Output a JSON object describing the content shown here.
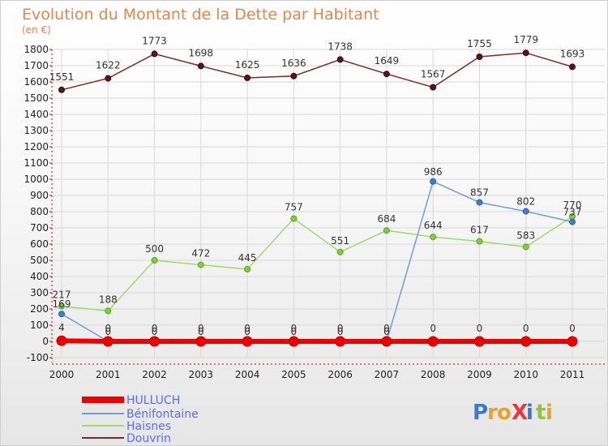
{
  "chart_data": {
    "type": "line",
    "title": "Evolution du Montant de la Dette par Habitant",
    "subtitle": "(en €)",
    "x": [
      "2000",
      "2001",
      "2002",
      "2003",
      "2004",
      "2005",
      "2006",
      "2007",
      "2008",
      "2009",
      "2010",
      "2011"
    ],
    "ylim": [
      -100,
      1800
    ],
    "yticks": [
      -100,
      0,
      100,
      200,
      300,
      400,
      500,
      600,
      700,
      800,
      900,
      1000,
      1100,
      1200,
      1300,
      1400,
      1500,
      1600,
      1700,
      1800
    ],
    "grid": true,
    "legend_position": "bottom-left",
    "series": [
      {
        "name": "HULLUCH",
        "color": "#ee0000",
        "values": [
          4,
          0,
          0,
          0,
          0,
          0,
          0,
          0,
          0,
          0,
          0,
          0
        ]
      },
      {
        "name": "Bénifontaine",
        "color": "#6fa0d8",
        "values": [
          169,
          0,
          0,
          0,
          0,
          0,
          0,
          0,
          986,
          857,
          802,
          737
        ]
      },
      {
        "name": "Haisnes",
        "color": "#9edc6a",
        "values": [
          217,
          188,
          500,
          472,
          445,
          757,
          551,
          684,
          644,
          617,
          583,
          770
        ]
      },
      {
        "name": "Douvrin",
        "color": "#7a2c2c",
        "values": [
          1551,
          1622,
          1773,
          1698,
          1625,
          1636,
          1738,
          1649,
          1567,
          1755,
          1779,
          1693
        ]
      }
    ],
    "data_labels": {
      "HULLUCH": [
        "4",
        "0",
        "0",
        "0",
        "0",
        "0",
        "0",
        "0",
        "0",
        "0",
        "0",
        "0"
      ],
      "Bénifontaine": [
        "169",
        "0",
        "0",
        "0",
        "0",
        "0",
        "0",
        "0",
        "986",
        "857",
        "802",
        "737"
      ],
      "Haisnes": [
        "217",
        "188",
        "500",
        "472",
        "445",
        "757",
        "551",
        "684",
        "644",
        "617",
        "583",
        "770"
      ],
      "Douvrin": [
        "1551",
        "1622",
        "1773",
        "1698",
        "1625",
        "1636",
        "1738",
        "1649",
        "1567",
        "1755",
        "1779",
        "1693"
      ]
    }
  },
  "logo": {
    "text": "ProXiti",
    "letters": [
      "P",
      "r",
      "o",
      "X",
      "i",
      "t",
      "i"
    ],
    "colors": [
      "#3a78c9",
      "#e8a32a",
      "#e8a32a",
      "#e23b3b",
      "#3a78c9",
      "#8cc63f",
      "#e8a32a"
    ]
  }
}
